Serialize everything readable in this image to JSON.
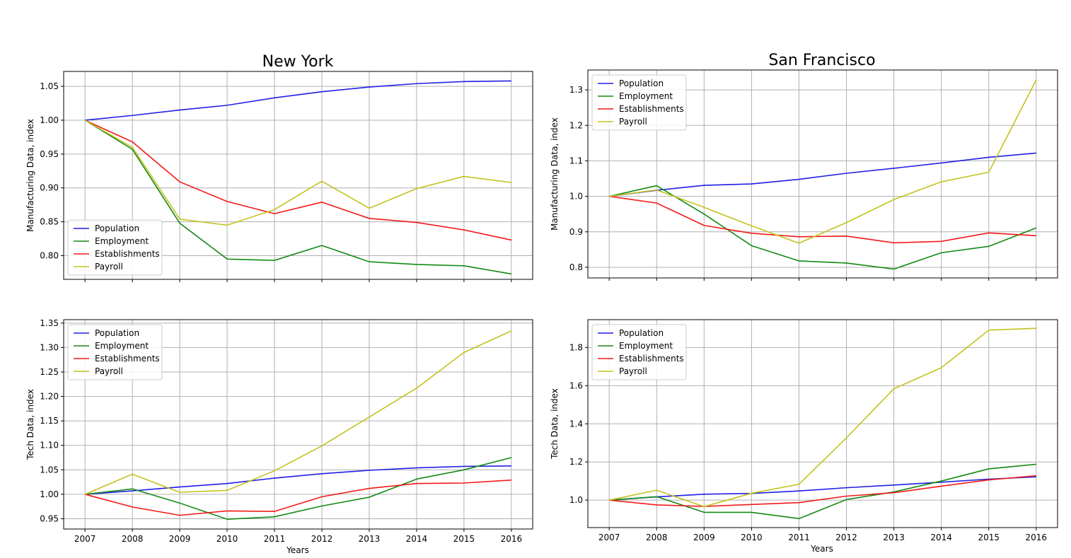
{
  "figure": {
    "titles": [
      "New York",
      "San Francisco"
    ],
    "xlabel": "Years"
  },
  "colors": {
    "Population": "#1f1fe6",
    "Employment": "#138a13",
    "Establishments": "#f21a1a",
    "Payroll": "#c4c21e"
  },
  "chart_data": [
    {
      "type": "line",
      "title": "New York",
      "xlabel": "",
      "ylabel": "Manufacturing Data, index",
      "x": [
        2007,
        2008,
        2009,
        2010,
        2011,
        2012,
        2013,
        2014,
        2015,
        2016
      ],
      "x_ticks": [
        "2007",
        "2008",
        "2009",
        "2010",
        "2011",
        "2012",
        "2013",
        "2014",
        "2015",
        "2016"
      ],
      "ylim": [
        0.765,
        1.072
      ],
      "y_ticks": [
        "0.80",
        "0.85",
        "0.90",
        "0.95",
        "1.00",
        "1.05"
      ],
      "grid": true,
      "legend_position": "lower-left",
      "series": [
        {
          "name": "Population",
          "values": [
            1.0,
            1.007,
            1.015,
            1.022,
            1.033,
            1.042,
            1.049,
            1.054,
            1.057,
            1.058
          ]
        },
        {
          "name": "Employment",
          "values": [
            1.0,
            0.957,
            0.848,
            0.795,
            0.793,
            0.815,
            0.791,
            0.787,
            0.785,
            0.773
          ]
        },
        {
          "name": "Establishments",
          "values": [
            1.0,
            0.968,
            0.909,
            0.88,
            0.862,
            0.879,
            0.855,
            0.849,
            0.838,
            0.823
          ]
        },
        {
          "name": "Payroll",
          "values": [
            1.0,
            0.96,
            0.854,
            0.845,
            0.868,
            0.91,
            0.87,
            0.899,
            0.917,
            0.908
          ]
        }
      ]
    },
    {
      "type": "line",
      "title": "San Francisco",
      "xlabel": "",
      "ylabel": "Manufacturing Data, index",
      "x": [
        2007,
        2008,
        2009,
        2010,
        2011,
        2012,
        2013,
        2014,
        2015,
        2016
      ],
      "x_ticks": [
        "2007",
        "2008",
        "2009",
        "2010",
        "2011",
        "2012",
        "2013",
        "2014",
        "2015",
        "2016"
      ],
      "ylim": [
        0.77,
        1.356
      ],
      "y_ticks": [
        "0.8",
        "0.9",
        "1.0",
        "1.1",
        "1.2",
        "1.3"
      ],
      "grid": true,
      "legend_position": "upper-left",
      "series": [
        {
          "name": "Population",
          "values": [
            1.0,
            1.017,
            1.031,
            1.035,
            1.048,
            1.065,
            1.079,
            1.094,
            1.11,
            1.122
          ]
        },
        {
          "name": "Employment",
          "values": [
            1.0,
            1.03,
            0.95,
            0.861,
            0.818,
            0.812,
            0.795,
            0.841,
            0.859,
            0.911
          ]
        },
        {
          "name": "Establishments",
          "values": [
            1.0,
            0.981,
            0.918,
            0.896,
            0.886,
            0.888,
            0.869,
            0.873,
            0.897,
            0.889
          ]
        },
        {
          "name": "Payroll",
          "values": [
            1.0,
            1.018,
            0.969,
            0.917,
            0.868,
            0.926,
            0.991,
            1.041,
            1.068,
            1.328
          ]
        }
      ]
    },
    {
      "type": "line",
      "title": "",
      "xlabel": "Years",
      "ylabel": "Tech Data, index",
      "x": [
        2007,
        2008,
        2009,
        2010,
        2011,
        2012,
        2013,
        2014,
        2015,
        2016
      ],
      "x_ticks": [
        "2007",
        "2008",
        "2009",
        "2010",
        "2011",
        "2012",
        "2013",
        "2014",
        "2015",
        "2016"
      ],
      "ylim": [
        0.929,
        1.357
      ],
      "y_ticks": [
        "0.95",
        "1.00",
        "1.05",
        "1.10",
        "1.15",
        "1.20",
        "1.25",
        "1.30",
        "1.35"
      ],
      "grid": true,
      "legend_position": "upper-left",
      "series": [
        {
          "name": "Population",
          "values": [
            1.0,
            1.007,
            1.015,
            1.022,
            1.033,
            1.042,
            1.049,
            1.054,
            1.057,
            1.058
          ]
        },
        {
          "name": "Employment",
          "values": [
            1.0,
            1.011,
            0.982,
            0.949,
            0.954,
            0.976,
            0.994,
            1.031,
            1.05,
            1.075
          ]
        },
        {
          "name": "Establishments",
          "values": [
            1.0,
            0.974,
            0.957,
            0.966,
            0.965,
            0.995,
            1.012,
            1.022,
            1.023,
            1.029
          ]
        },
        {
          "name": "Payroll",
          "values": [
            1.0,
            1.041,
            1.004,
            1.008,
            1.048,
            1.099,
            1.158,
            1.217,
            1.29,
            1.334
          ]
        }
      ]
    },
    {
      "type": "line",
      "title": "",
      "xlabel": "Years",
      "ylabel": "Tech Data, index",
      "x": [
        2007,
        2008,
        2009,
        2010,
        2011,
        2012,
        2013,
        2014,
        2015,
        2016
      ],
      "x_ticks": [
        "2007",
        "2008",
        "2009",
        "2010",
        "2011",
        "2012",
        "2013",
        "2014",
        "2015",
        "2016"
      ],
      "ylim": [
        0.856,
        1.946
      ],
      "y_ticks": [
        "1.0",
        "1.2",
        "1.4",
        "1.6",
        "1.8"
      ],
      "grid": true,
      "legend_position": "upper-left",
      "series": [
        {
          "name": "Population",
          "values": [
            1.0,
            1.017,
            1.031,
            1.035,
            1.048,
            1.065,
            1.079,
            1.094,
            1.11,
            1.122
          ]
        },
        {
          "name": "Employment",
          "values": [
            1.0,
            1.018,
            0.936,
            0.936,
            0.903,
            1.003,
            1.043,
            1.1,
            1.164,
            1.188
          ]
        },
        {
          "name": "Establishments",
          "values": [
            1.0,
            0.975,
            0.967,
            0.977,
            0.987,
            1.021,
            1.039,
            1.073,
            1.106,
            1.128
          ]
        },
        {
          "name": "Payroll",
          "values": [
            1.0,
            1.052,
            0.966,
            1.036,
            1.083,
            1.326,
            1.584,
            1.694,
            1.891,
            1.901
          ]
        }
      ]
    }
  ]
}
